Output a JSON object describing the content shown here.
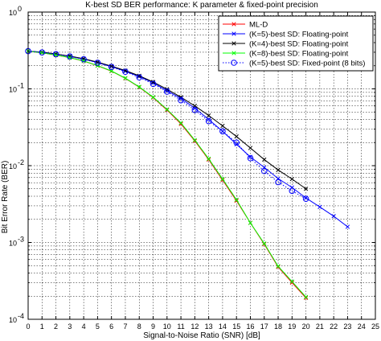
{
  "chart_data": {
    "type": "line",
    "title": "K-best SD BER performance: K parameter & fixed-point precision",
    "xlabel": "Signal-to-Noise Ratio (SNR) [dB]",
    "ylabel": "Bit Error Rate (BER)",
    "xlim": [
      0,
      25
    ],
    "ylim": [
      0.0001,
      1
    ],
    "yscale": "log",
    "xticks": [
      "0",
      "1",
      "2",
      "3",
      "4",
      "5",
      "6",
      "7",
      "8",
      "9",
      "10",
      "11",
      "12",
      "13",
      "14",
      "15",
      "16",
      "17",
      "18",
      "19",
      "20",
      "21",
      "22",
      "23",
      "24",
      "25"
    ],
    "yticks": [
      {
        "value": 1,
        "base": "10",
        "exp": "0"
      },
      {
        "value": 0.1,
        "base": "10",
        "exp": "-1"
      },
      {
        "value": 0.01,
        "base": "10",
        "exp": "-2"
      },
      {
        "value": 0.001,
        "base": "10",
        "exp": "-3"
      },
      {
        "value": 0.0001,
        "base": "10",
        "exp": "-4"
      }
    ],
    "grid": true,
    "legend_position": "top-right",
    "series": [
      {
        "name": "ML-D",
        "color": "#ff0000",
        "marker": "x",
        "style": "solid",
        "x": [
          0,
          1,
          2,
          3,
          4,
          5,
          6,
          7,
          8,
          9,
          10,
          11,
          12,
          13,
          14,
          15,
          16,
          17,
          18,
          19,
          20
        ],
        "y": [
          0.31,
          0.295,
          0.275,
          0.255,
          0.23,
          0.2,
          0.17,
          0.137,
          0.105,
          0.077,
          0.053,
          0.035,
          0.021,
          0.012,
          0.0065,
          0.0035,
          0.0018,
          0.00095,
          0.00048,
          0.0003,
          0.00019
        ]
      },
      {
        "name": "(K=5)-best SD: Floating-point",
        "color": "#0000ff",
        "marker": "x",
        "style": "solid",
        "x": [
          0,
          1,
          2,
          3,
          4,
          5,
          6,
          7,
          8,
          9,
          10,
          11,
          12,
          13,
          14,
          15,
          16,
          17,
          18,
          19,
          20,
          21,
          22,
          23
        ],
        "y": [
          0.31,
          0.3,
          0.285,
          0.265,
          0.245,
          0.22,
          0.195,
          0.17,
          0.145,
          0.12,
          0.095,
          0.075,
          0.056,
          0.04,
          0.028,
          0.019,
          0.013,
          0.0095,
          0.0068,
          0.0052,
          0.0038,
          0.0029,
          0.0022,
          0.0016
        ]
      },
      {
        "name": "(K=4)-best SD: Floating-point",
        "color": "#000000",
        "marker": "x",
        "style": "solid",
        "x": [
          0,
          1,
          2,
          3,
          4,
          5,
          6,
          7,
          8,
          9,
          10,
          11,
          12,
          13,
          14,
          15,
          16,
          17,
          18,
          19,
          20
        ],
        "y": [
          0.31,
          0.3,
          0.285,
          0.267,
          0.247,
          0.223,
          0.198,
          0.173,
          0.148,
          0.123,
          0.099,
          0.078,
          0.06,
          0.045,
          0.033,
          0.024,
          0.017,
          0.012,
          0.0088,
          0.0067,
          0.005
        ]
      },
      {
        "name": "(K=8)-best SD: Floating-point",
        "color": "#00ff00",
        "marker": "x",
        "style": "solid",
        "x": [
          0,
          1,
          2,
          3,
          4,
          5,
          6,
          7,
          8,
          9,
          10,
          11,
          12,
          13,
          14,
          15,
          16,
          17,
          18,
          19,
          20
        ],
        "y": [
          0.31,
          0.295,
          0.276,
          0.255,
          0.231,
          0.201,
          0.171,
          0.138,
          0.106,
          0.078,
          0.054,
          0.036,
          0.0215,
          0.0123,
          0.0067,
          0.0036,
          0.0018,
          0.00097,
          0.00049,
          0.00031,
          0.000195
        ]
      },
      {
        "name": "(K=5)-best SD: Fixed-point (8 bits)",
        "color": "#0000ff",
        "marker": "o",
        "style": "dotted",
        "x": [
          0,
          1,
          2,
          3,
          4,
          5,
          6,
          7,
          8,
          9,
          10,
          11,
          12,
          13,
          14,
          15,
          16,
          17,
          18,
          19,
          20
        ],
        "y": [
          0.31,
          0.298,
          0.283,
          0.264,
          0.243,
          0.219,
          0.193,
          0.167,
          0.141,
          0.116,
          0.092,
          0.071,
          0.053,
          0.038,
          0.028,
          0.02,
          0.0125,
          0.0085,
          0.0061,
          0.0047,
          0.0037
        ]
      }
    ]
  }
}
